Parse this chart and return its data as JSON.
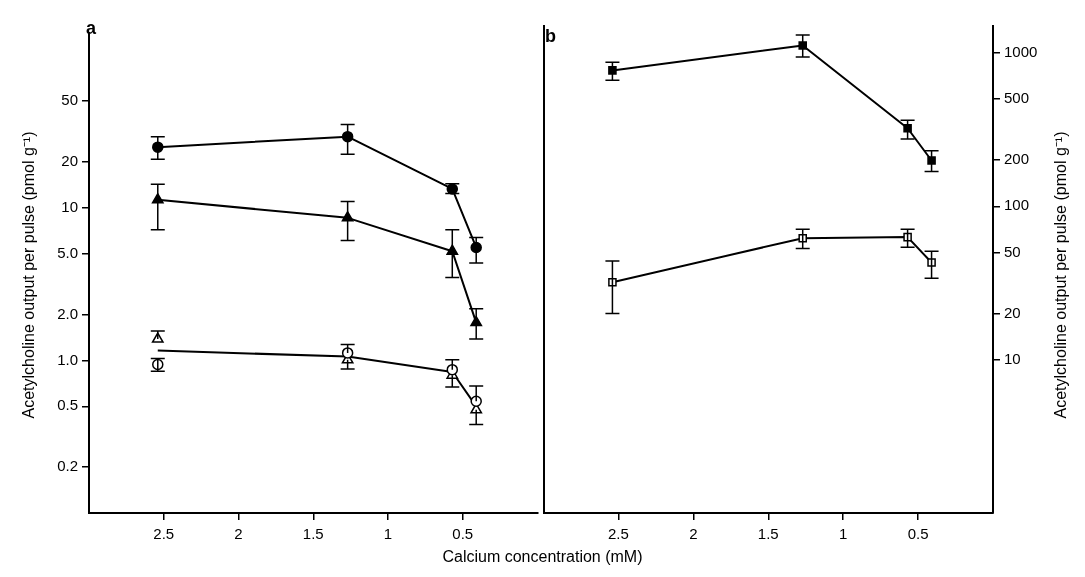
{
  "chart_data": [
    {
      "type": "line",
      "title": "a",
      "xlabel": "Calcium concentration (mM)",
      "ylabel": "Acetylcholine output per pulse (pmol g⁻¹)",
      "x": [
        2.54,
        1.27,
        0.57,
        0.41
      ],
      "xlim": [
        3,
        0
      ],
      "xticks": [
        2.5,
        2,
        1.5,
        1,
        0.5
      ],
      "ylim": [
        0.1,
        140
      ],
      "yticks": [
        0.2,
        {
          "value": 0.5,
          "label": "0.5"
        },
        {
          "value": 1,
          "label": "1.0"
        },
        {
          "value": 2,
          "label": "2.0"
        },
        {
          "value": 5,
          "label": "5.0"
        },
        10,
        20,
        50
      ],
      "log": "y",
      "grid": false,
      "legend": false,
      "series": [
        {
          "color": "#000000",
          "marker": "circle",
          "values": [
            25,
            29.3,
            13.3,
            5.5
          ],
          "errors": [
            [
              20.8,
              29.3
            ],
            [
              22.5,
              35.2
            ],
            [
              12.4,
              14.4
            ],
            [
              4.35,
              6.4
            ]
          ]
        },
        {
          "color": "#000000",
          "marker": "triangle",
          "values": [
            11.3,
            8.6,
            5.2,
            1.77
          ],
          "errors": [
            [
              7.2,
              14.3
            ],
            [
              6.1,
              11.0
            ],
            [
              3.5,
              7.2
            ],
            [
              1.38,
              2.18
            ]
          ]
        },
        {
          "type": "scatter",
          "color": "#000000",
          "colors": [
            "#ffffff",
            "#ffffff",
            "#ffffff",
            "#ffffff"
          ],
          "marker": "circle",
          "values": [
            0.94,
            1.12,
            0.87,
            0.54
          ],
          "errors": [
            [
              0.85,
              1.03
            ],
            [
              1.12,
              1.27
            ],
            [
              0.87,
              1.01
            ],
            [
              0.54,
              0.68
            ]
          ]
        },
        {
          "type": "scatter",
          "color": "#000000",
          "colors": [
            "#ffffff",
            "#ffffff",
            "#ffffff",
            "#ffffff"
          ],
          "marker": "triangle",
          "values": [
            1.38,
            1.01,
            0.8,
            0.475
          ],
          "errors": [
            [
              1.38,
              1.56
            ],
            [
              0.88,
              1.01
            ],
            [
              0.67,
              0.8
            ],
            [
              0.38,
              0.475
            ]
          ]
        },
        {
          "color": "#000000",
          "marker": "none",
          "values": [
            1.16,
            1.06,
            0.84,
            0.5
          ]
        }
      ]
    },
    {
      "type": "line",
      "title": "b",
      "y2label": "Acetylcholine output per pulse (pmol g⁻¹)",
      "x": [
        2.54,
        1.27,
        0.57,
        0.41
      ],
      "xlim": [
        3,
        0
      ],
      "xticks": [
        2.5,
        2,
        1.5,
        1,
        0.5
      ],
      "y2lim": [
        1,
        1500
      ],
      "y2ticks": [
        10,
        20,
        50,
        100,
        200,
        500,
        1000
      ],
      "log": "y2",
      "grid": false,
      "legend": false,
      "series": [
        {
          "axis": "y2",
          "color": "#000000",
          "marker": "square",
          "values": [
            770,
            1120,
            323,
            199
          ],
          "errors": [
            [
              665,
              870
            ],
            [
              940,
              1310
            ],
            [
              275,
              364
            ],
            [
              169,
              230
            ]
          ]
        },
        {
          "axis": "y2",
          "color": "#000000",
          "colors": [
            "#ffffff",
            "#ffffff",
            "#ffffff",
            "#ffffff"
          ],
          "marker": "square",
          "values": [
            32,
            62,
            63,
            43
          ],
          "errors": [
            [
              20,
              44
            ],
            [
              53,
              71
            ],
            [
              54,
              71
            ],
            [
              34,
              51
            ]
          ]
        }
      ]
    }
  ]
}
